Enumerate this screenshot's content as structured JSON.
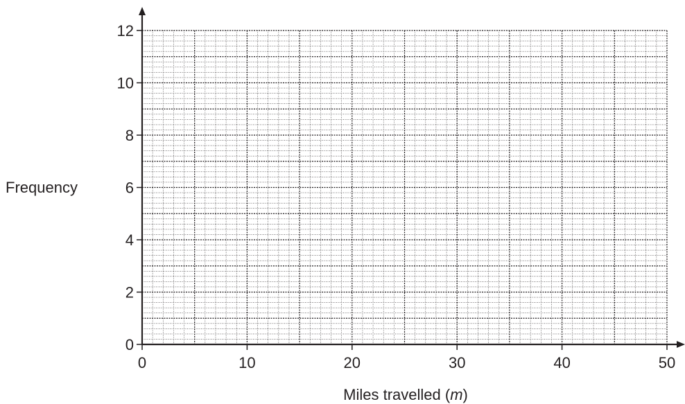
{
  "chart_data": {
    "type": "bar",
    "title": "",
    "xlabel": "Miles travelled",
    "xlabel_var": "m",
    "ylabel": "Frequency",
    "xlim": [
      0,
      50
    ],
    "ylim": [
      0,
      12
    ],
    "x_ticks": [
      0,
      10,
      20,
      30,
      40,
      50
    ],
    "y_ticks": [
      0,
      2,
      4,
      6,
      8,
      10,
      12
    ],
    "grid": "graph paper (major and minor lines)",
    "series": []
  }
}
